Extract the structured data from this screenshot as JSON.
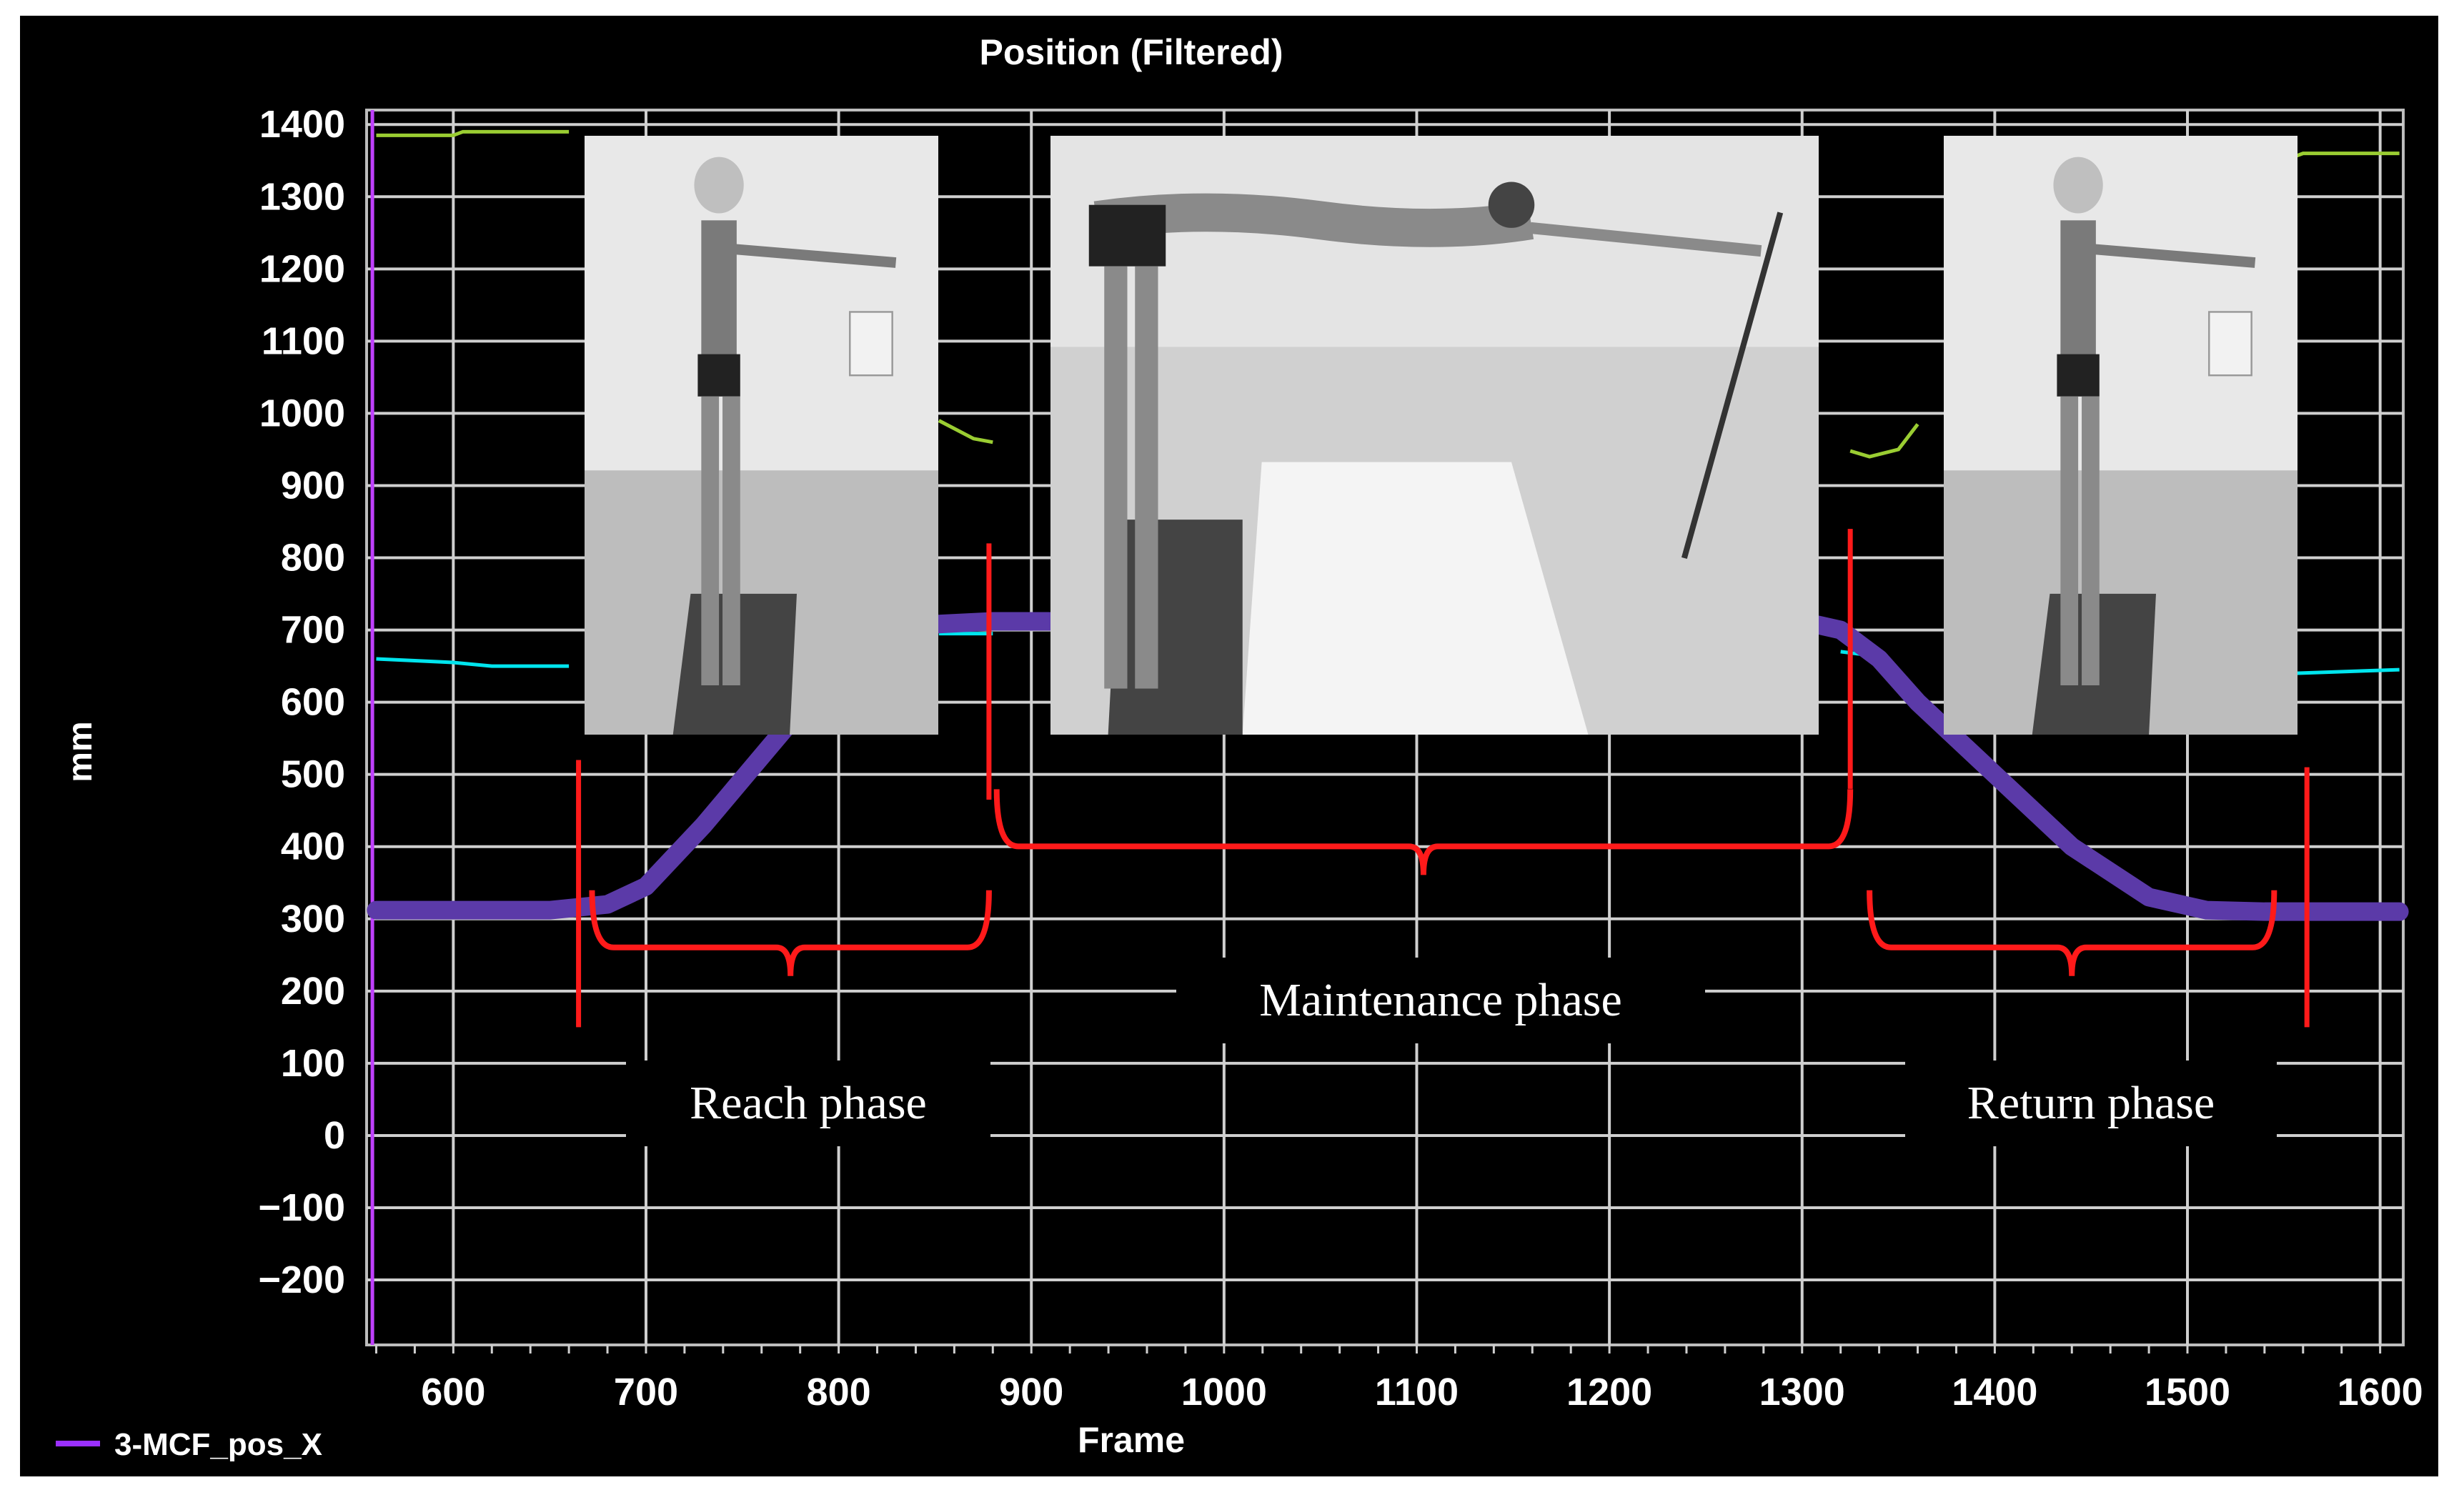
{
  "chart_data": {
    "type": "line",
    "title": "Position (Filtered)",
    "xlabel": "Frame",
    "ylabel": "mm",
    "xlim": [
      555,
      1612
    ],
    "ylim": [
      -290,
      1420
    ],
    "xticks": [
      600,
      700,
      800,
      900,
      1000,
      1100,
      1200,
      1300,
      1400,
      1500,
      1600
    ],
    "yticks": [
      1400,
      1300,
      1200,
      1100,
      1000,
      900,
      800,
      700,
      600,
      500,
      400,
      300,
      200,
      100,
      0,
      -100,
      -200
    ],
    "grid": true,
    "cursor_x": 558,
    "legend": {
      "position": "bottom-left",
      "entries": [
        {
          "name": "3-MCF_pos_X",
          "color": "#9b30ff"
        }
      ]
    },
    "series": [
      {
        "name": "3-MCF_pos_X",
        "color": "#5b3aa8",
        "x": [
          560,
          650,
          680,
          700,
          730,
          760,
          790,
          820,
          850,
          880,
          1000,
          1100,
          1200,
          1300,
          1320,
          1340,
          1360,
          1400,
          1440,
          1480,
          1510,
          1540,
          1570,
          1610
        ],
        "y": [
          312,
          312,
          320,
          345,
          430,
          525,
          620,
          675,
          708,
          712,
          712,
          712,
          712,
          712,
          700,
          660,
          600,
          500,
          400,
          330,
          312,
          310,
          310,
          310
        ]
      },
      {
        "color": "#9acd32",
        "x": [
          560,
          600,
          605,
          660
        ],
        "y": [
          1385,
          1385,
          1390,
          1390
        ],
        "segments_hidden": true
      },
      {
        "color": "#00e5ee",
        "x": [
          560,
          600,
          620,
          660
        ],
        "y": [
          660,
          655,
          650,
          650
        ]
      }
    ],
    "visible_fragments": [
      {
        "color": "#9acd32",
        "x": [
          852,
          870,
          880
        ],
        "y": [
          990,
          965,
          960
        ]
      },
      {
        "color": "#9acd32",
        "x": [
          1325,
          1335,
          1350,
          1360
        ],
        "y": [
          948,
          940,
          950,
          985
        ]
      },
      {
        "color": "#9acd32",
        "x": [
          1610,
          1560,
          1555
        ],
        "y": [
          1360,
          1360,
          1355
        ]
      },
      {
        "color": "#00e5ee",
        "x": [
          852,
          880
        ],
        "y": [
          695,
          695
        ]
      },
      {
        "color": "#00e5ee",
        "x": [
          1320,
          1335,
          1345
        ],
        "y": [
          670,
          665,
          655
        ]
      },
      {
        "color": "#00e5ee",
        "x": [
          1555,
          1610
        ],
        "y": [
          640,
          645
        ]
      }
    ],
    "annotations": [
      {
        "text": "Reach phase",
        "bracket": [
          672,
          878
        ],
        "marker_x": 665
      },
      {
        "text": "Maintenance phase",
        "bracket": [
          882,
          1325
        ]
      },
      {
        "text": "Return phase",
        "bracket": [
          1335,
          1545
        ],
        "marker_x": 1562
      }
    ]
  }
}
